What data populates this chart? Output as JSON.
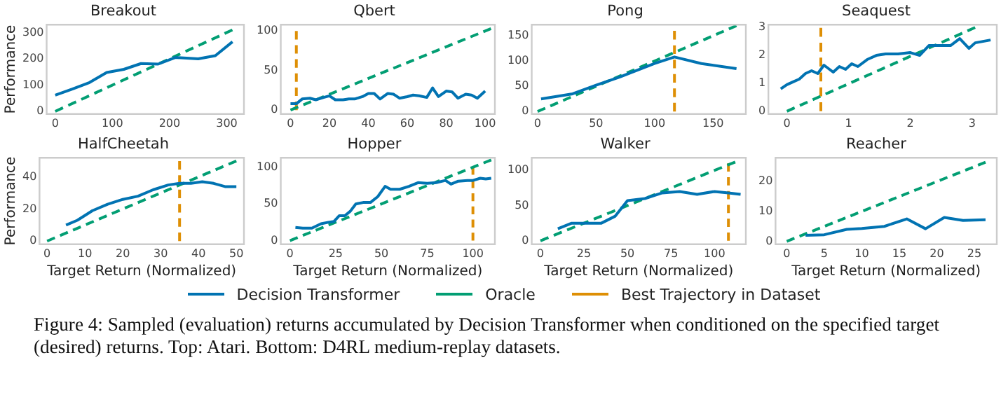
{
  "chart_data": [
    {
      "type": "line",
      "title": "Breakout",
      "ylabel": "Performance",
      "xlim": [
        -15,
        330
      ],
      "ylim": [
        -10,
        330
      ],
      "xticks": [
        0,
        100,
        200,
        300
      ],
      "yticks": [
        0,
        100,
        200,
        300
      ],
      "grid": false,
      "series": [
        {
          "color": "#0173b2",
          "line_style": "solid",
          "x": [
            0,
            30,
            60,
            90,
            120,
            150,
            180,
            210,
            250,
            280,
            310
          ],
          "values": [
            62,
            85,
            110,
            148,
            160,
            182,
            180,
            205,
            200,
            212,
            265
          ]
        },
        {
          "color": "#029e73",
          "line_style": "dashed",
          "x": [
            0,
            310
          ],
          "values": [
            0,
            310
          ]
        }
      ]
    },
    {
      "type": "line",
      "title": "Qbert",
      "xlim": [
        -5,
        105
      ],
      "ylim": [
        -5,
        108
      ],
      "xticks": [
        0,
        20,
        40,
        60,
        80,
        100
      ],
      "yticks": [
        0,
        50,
        100
      ],
      "grid": false,
      "legend": "bottom",
      "series": [
        {
          "name": "Decision Transformer",
          "color": "#0173b2",
          "line_style": "solid",
          "x": [
            0,
            3,
            6,
            10,
            13,
            17,
            20,
            23,
            27,
            30,
            33,
            37,
            40,
            43,
            46,
            50,
            53,
            56,
            60,
            63,
            66,
            70,
            73,
            76,
            80,
            83,
            86,
            90,
            93,
            96,
            100
          ],
          "values": [
            8,
            8,
            14,
            15,
            13,
            16,
            18,
            13,
            13,
            14,
            14,
            17,
            21,
            21,
            14,
            21,
            20,
            15,
            17,
            19,
            18,
            16,
            28,
            17,
            24,
            23,
            15,
            20,
            19,
            15,
            24
          ]
        },
        {
          "name": "Oracle",
          "color": "#029e73",
          "line_style": "dashed",
          "x": [
            0,
            103
          ],
          "values": [
            0,
            103
          ]
        },
        {
          "name": "Best Trajectory in Dataset",
          "color": "#de8f05",
          "line_style": "dashed",
          "x": [
            3,
            3
          ],
          "values": [
            0,
            100
          ]
        }
      ]
    },
    {
      "type": "line",
      "title": "Pong",
      "xlim": [
        -5,
        178
      ],
      "ylim": [
        -5,
        172
      ],
      "xticks": [
        0,
        50,
        100,
        150
      ],
      "yticks": [
        0,
        50,
        100,
        150
      ],
      "grid": false,
      "series": [
        {
          "color": "#0173b2",
          "line_style": "solid",
          "x": [
            3,
            30,
            50,
            70,
            100,
            117,
            140,
            170
          ],
          "values": [
            25,
            35,
            52,
            68,
            95,
            108,
            95,
            85
          ]
        },
        {
          "color": "#029e73",
          "line_style": "dashed",
          "x": [
            0,
            170
          ],
          "values": [
            0,
            170
          ]
        },
        {
          "color": "#de8f05",
          "line_style": "dashed",
          "x": [
            117,
            117
          ],
          "values": [
            0,
            160
          ]
        }
      ]
    },
    {
      "type": "line",
      "title": "Seaquest",
      "xlim": [
        -0.3,
        3.4
      ],
      "ylim": [
        -0.1,
        3.1
      ],
      "xticks": [
        0,
        1,
        2,
        3
      ],
      "yticks": [
        0,
        1,
        2,
        3
      ],
      "grid": false,
      "series": [
        {
          "color": "#0173b2",
          "line_style": "solid",
          "x": [
            -0.1,
            0,
            0.1,
            0.2,
            0.3,
            0.4,
            0.5,
            0.6,
            0.75,
            0.85,
            0.95,
            1.05,
            1.15,
            1.3,
            1.45,
            1.6,
            1.8,
            2.0,
            2.15,
            2.3,
            2.5,
            2.65,
            2.8,
            2.95,
            3.05,
            3.3
          ],
          "values": [
            0.8,
            0.95,
            1.05,
            1.15,
            1.35,
            1.45,
            1.35,
            1.65,
            1.4,
            1.6,
            1.5,
            1.7,
            1.6,
            1.85,
            2.0,
            2.05,
            2.05,
            2.1,
            2.0,
            2.35,
            2.35,
            2.35,
            2.6,
            2.25,
            2.45,
            2.55
          ]
        },
        {
          "color": "#029e73",
          "line_style": "dashed",
          "x": [
            0,
            3.05
          ],
          "values": [
            0,
            3
          ]
        },
        {
          "color": "#de8f05",
          "line_style": "dashed",
          "x": [
            0.55,
            0.55
          ],
          "values": [
            0,
            3
          ]
        }
      ]
    },
    {
      "type": "line",
      "title": "HalfCheetah",
      "xlabel": "Target Return (Normalized)",
      "ylabel": "Performance",
      "xlim": [
        -2,
        52
      ],
      "ylim": [
        -2,
        52
      ],
      "xticks": [
        0,
        10,
        20,
        30,
        40,
        50
      ],
      "yticks": [
        0,
        20,
        40
      ],
      "grid": false,
      "series": [
        {
          "color": "#0173b2",
          "line_style": "solid",
          "x": [
            5,
            8,
            12,
            16,
            20,
            24,
            28,
            32,
            35,
            38,
            41,
            44,
            47,
            50
          ],
          "values": [
            10,
            13,
            19,
            23,
            26,
            28,
            32,
            35,
            36,
            36,
            37,
            36,
            34,
            34
          ]
        },
        {
          "color": "#029e73",
          "line_style": "dashed",
          "x": [
            0,
            50
          ],
          "values": [
            0,
            50
          ]
        },
        {
          "color": "#de8f05",
          "line_style": "dashed",
          "x": [
            35,
            35
          ],
          "values": [
            0,
            50
          ]
        }
      ]
    },
    {
      "type": "line",
      "title": "Hopper",
      "xlabel": "Target Return (Normalized)",
      "xlim": [
        -5,
        112
      ],
      "ylim": [
        -5,
        113
      ],
      "xticks": [
        0,
        25,
        50,
        75,
        100
      ],
      "yticks": [
        0,
        50,
        100
      ],
      "grid": false,
      "series": [
        {
          "color": "#0173b2",
          "line_style": "solid",
          "x": [
            3,
            7,
            12,
            17,
            21,
            24,
            27,
            30,
            33,
            36,
            40,
            44,
            48,
            52,
            55,
            60,
            65,
            70,
            75,
            80,
            85,
            88,
            92,
            97,
            100,
            104,
            107,
            110
          ],
          "values": [
            18,
            17,
            17,
            23,
            25,
            26,
            34,
            34,
            40,
            50,
            52,
            52,
            60,
            74,
            70,
            70,
            74,
            79,
            78,
            79,
            82,
            77,
            81,
            82,
            82,
            85,
            84,
            85
          ]
        },
        {
          "color": "#029e73",
          "line_style": "dashed",
          "x": [
            0,
            110
          ],
          "values": [
            0,
            110
          ]
        },
        {
          "color": "#de8f05",
          "line_style": "dashed",
          "x": [
            100,
            100
          ],
          "values": [
            0,
            100
          ]
        }
      ]
    },
    {
      "type": "line",
      "title": "Walker",
      "xlabel": "Target Return (Normalized)",
      "xlim": [
        -5,
        118
      ],
      "ylim": [
        -5,
        118
      ],
      "xticks": [
        0,
        25,
        50,
        75,
        100
      ],
      "yticks": [
        0,
        50,
        100
      ],
      "grid": false,
      "series": [
        {
          "color": "#0173b2",
          "line_style": "solid",
          "x": [
            10,
            18,
            27,
            35,
            43,
            50,
            60,
            70,
            80,
            90,
            100,
            108,
            115
          ],
          "values": [
            17,
            25,
            25,
            25,
            35,
            57,
            60,
            68,
            70,
            66,
            70,
            68,
            66
          ]
        },
        {
          "color": "#029e73",
          "line_style": "dashed",
          "x": [
            0,
            112
          ],
          "values": [
            0,
            112
          ]
        },
        {
          "color": "#de8f05",
          "line_style": "dashed",
          "x": [
            108,
            108
          ],
          "values": [
            0,
            110
          ]
        }
      ]
    },
    {
      "type": "line",
      "title": "Reacher",
      "xlabel": "Target Return (Normalized)",
      "xlim": [
        -1.5,
        28
      ],
      "ylim": [
        -1,
        28
      ],
      "xticks": [
        0,
        5,
        10,
        15,
        20,
        25
      ],
      "yticks": [
        0,
        10,
        20
      ],
      "grid": false,
      "series": [
        {
          "color": "#0173b2",
          "line_style": "solid",
          "x": [
            2.5,
            5,
            8,
            10,
            13,
            16,
            18.5,
            21,
            23.5,
            26.5
          ],
          "values": [
            2,
            2.2,
            4,
            4.3,
            5,
            7.5,
            4.2,
            8,
            7,
            7.2
          ]
        },
        {
          "color": "#029e73",
          "line_style": "dashed",
          "x": [
            0,
            26.5
          ],
          "values": [
            0,
            26.5
          ]
        }
      ]
    },
    {
      "type": "other",
      "annotations": [
        "Figure 4:  Sampled (evaluation) returns accumulated by Decision Transformer when conditioned on the specified target (desired) returns. Top: Atari. Bottom: D4RL medium-replay datasets."
      ]
    }
  ]
}
